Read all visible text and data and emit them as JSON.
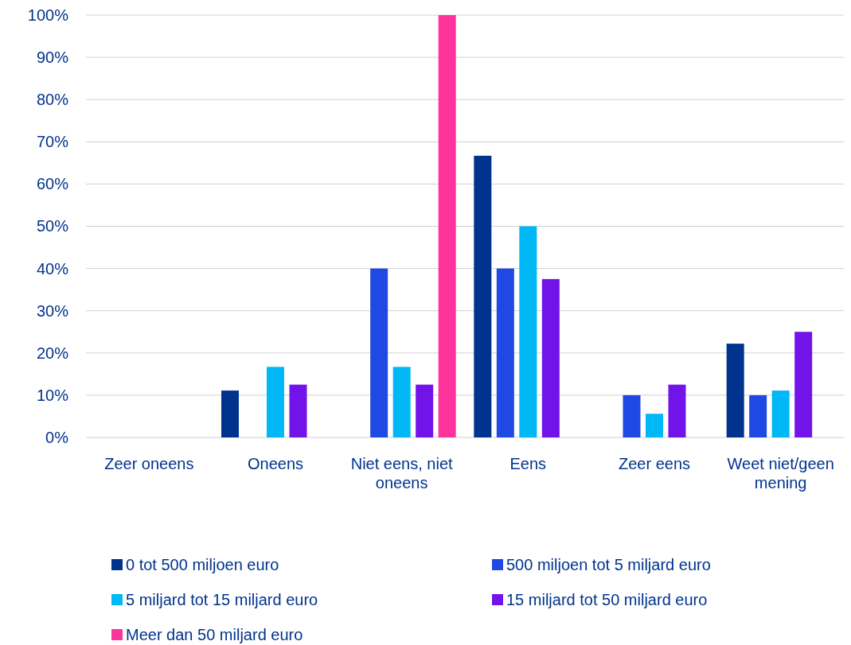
{
  "chart_data": {
    "type": "bar",
    "categories": [
      "Zeer oneens",
      "Oneens",
      "Niet eens, niet oneens",
      "Eens",
      "Zeer eens",
      "Weet niet/geen mening"
    ],
    "series": [
      {
        "name": "0 tot 500 miljoen euro",
        "color": "#00338d",
        "values": [
          0,
          11.1,
          0,
          66.7,
          0,
          22.2
        ]
      },
      {
        "name": "500 miljoen tot 5 miljard euro",
        "color": "#1e49e2",
        "values": [
          0,
          0,
          40,
          40,
          10,
          10
        ]
      },
      {
        "name": "5 miljard tot 15 miljard euro",
        "color": "#00b8f5",
        "values": [
          0,
          16.7,
          16.7,
          50,
          5.6,
          11.1
        ]
      },
      {
        "name": "15 miljard tot 50 miljard euro",
        "color": "#7213ea",
        "values": [
          0,
          12.5,
          12.5,
          37.5,
          12.5,
          25
        ]
      },
      {
        "name": "Meer dan 50 miljard euro",
        "color": "#fd349c",
        "values": [
          0,
          0,
          100,
          0,
          0,
          0
        ]
      }
    ],
    "ylim": [
      0,
      100
    ],
    "yticks": [
      {
        "value": 0,
        "label": "0%"
      },
      {
        "value": 10,
        "label": "10%"
      },
      {
        "value": 20,
        "label": "20%"
      },
      {
        "value": 30,
        "label": "30%"
      },
      {
        "value": 40,
        "label": "40%"
      },
      {
        "value": 50,
        "label": "50%"
      },
      {
        "value": 60,
        "label": "60%"
      },
      {
        "value": 70,
        "label": "70%"
      },
      {
        "value": 80,
        "label": "80%"
      },
      {
        "value": 90,
        "label": "90%"
      },
      {
        "value": 100,
        "label": "100%"
      }
    ],
    "grid": "y",
    "legend": "bottom"
  }
}
